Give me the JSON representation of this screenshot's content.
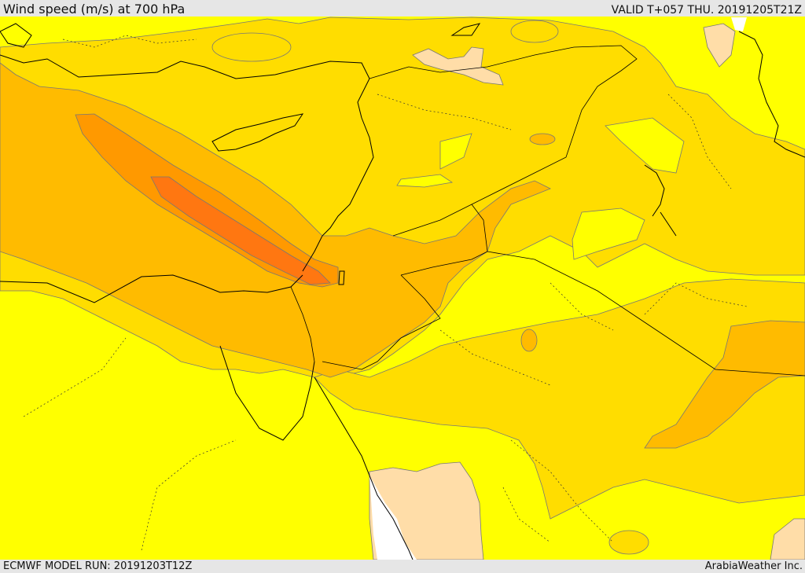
{
  "header": {
    "title": "Wind speed (m/s) at 700 hPa",
    "valid": "VALID T+057 THU. 20191205T21Z"
  },
  "footer": {
    "model_run": "ECMWF MODEL RUN: 20191203T12Z",
    "credit": "ArabiaWeather Inc."
  },
  "colors": {
    "level_0": "#ffff00",
    "level_1": "#ffdd00",
    "level_2": "#ffbb00",
    "level_3": "#ff9900",
    "level_4": "#ff7711",
    "land_pale": "#ffdda8",
    "sea_white": "#ffffff",
    "coastline": "#000000",
    "contour": "#777777"
  }
}
